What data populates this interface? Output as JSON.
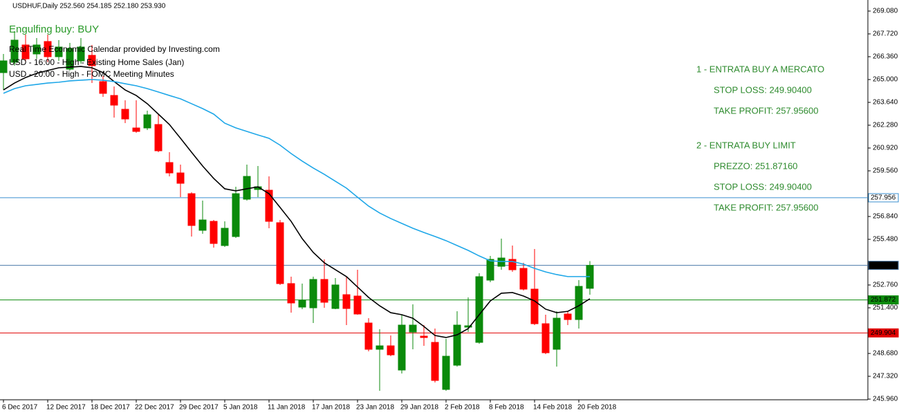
{
  "chart_data": {
    "type": "candlestick",
    "header": "USDHUF,Daily  252.560 254.185 252.180 253.930",
    "signal": "Engulfing buy: BUY",
    "calendar": [
      "Real Time Economic Calendar provided by Investing.com",
      "USD - 16:00 - High - Existing Home Sales (Jan)",
      "USD - 20:00 - High - FOMC Meeting Minutes"
    ],
    "plan": [
      "1 - ENTRATA BUY A MERCATO",
      "STOP LOSS: 249.90400",
      "TAKE PROFIT: 257.95600",
      "2 - ENTRATA BUY LIMIT",
      "PREZZO: 251.87160",
      "STOP LOSS: 249.90400",
      "TAKE PROFIT: 257.95600"
    ],
    "categories": [
      "6 Dec 2017",
      null,
      null,
      null,
      "12 Dec 2017",
      null,
      null,
      null,
      "18 Dec 2017",
      null,
      null,
      null,
      "22 Dec 2017",
      null,
      null,
      null,
      "29 Dec 2017",
      null,
      null,
      null,
      "5 Jan 2018",
      null,
      null,
      null,
      "11 Jan 2018",
      null,
      null,
      null,
      "17 Jan 2018",
      null,
      null,
      null,
      "23 Jan 2018",
      null,
      null,
      null,
      "29 Jan 2018",
      null,
      null,
      null,
      "2 Feb 2018",
      null,
      null,
      null,
      "8 Feb 2018",
      null,
      null,
      null,
      "14 Feb 2018",
      null,
      null,
      null,
      "20 Feb 2018",
      null
    ],
    "open": [
      265.412,
      266.03,
      267.06,
      266.525,
      267.266,
      266.36,
      265.618,
      266.113,
      266.442,
      264.876,
      264.052,
      263.228,
      262.115,
      262.115,
      262.321,
      260.055,
      259.436,
      258.2,
      256.016,
      256.552,
      255.109,
      255.645,
      257.87,
      258.447,
      258.406,
      256.47,
      252.843,
      251.442,
      251.4,
      253.09,
      251.359,
      252.183,
      252.101,
      250.494,
      248.928,
      249.134,
      247.692,
      249.958,
      249.711,
      249.34,
      246.537,
      247.98,
      250.247,
      249.34,
      253.049,
      253.873,
      254.285,
      253.749,
      252.513,
      250.452,
      248.928,
      251.03,
      250.7,
      252.56
    ],
    "high": [
      266.525,
      267.885,
      267.679,
      267.472,
      267.679,
      267.349,
      267.184,
      267.472,
      267.06,
      265.206,
      264.588,
      263.764,
      263.764,
      263.145,
      262.939,
      260.673,
      259.931,
      258.283,
      257.788,
      256.634,
      256.552,
      258.612,
      259.931,
      259.849,
      259.23,
      256.634,
      253.255,
      252.843,
      253.255,
      254.285,
      253.173,
      253.255,
      253.667,
      250.782,
      250.123,
      249.752,
      250.988,
      251.607,
      250.37,
      250.164,
      249.546,
      251.195,
      252.019,
      253.461,
      254.491,
      255.522,
      255.109,
      254.079,
      254.903,
      250.988,
      251.195,
      251.195,
      253.049,
      254.185
    ],
    "low": [
      264.382,
      265.824,
      266.03,
      266.236,
      266.03,
      266.113,
      265.536,
      265.948,
      264.794,
      263.969,
      262.733,
      262.404,
      261.827,
      261.991,
      260.673,
      259.23,
      257.994,
      255.645,
      255.81,
      254.986,
      255.027,
      255.563,
      257.788,
      257.994,
      256.14,
      252.761,
      251.112,
      251.318,
      250.494,
      251.4,
      251.318,
      250.37,
      250.988,
      248.804,
      246.456,
      248.515,
      247.486,
      248.928,
      249.134,
      246.95,
      246.456,
      247.898,
      249.958,
      249.258,
      252.925,
      253.667,
      253.544,
      252.431,
      250.37,
      248.639,
      247.898,
      250.37,
      250.164,
      252.18
    ],
    "close": [
      266.113,
      267.349,
      266.236,
      267.06,
      266.36,
      266.937,
      266.854,
      266.937,
      265.824,
      264.176,
      263.475,
      262.651,
      261.909,
      262.898,
      260.755,
      259.436,
      258.818,
      256.305,
      256.634,
      255.233,
      256.14,
      258.2,
      259.23,
      258.612,
      256.552,
      252.843,
      251.689,
      251.854,
      253.09,
      251.73,
      252.761,
      251.359,
      251.03,
      248.928,
      249.134,
      248.598,
      250.37,
      250.37,
      249.629,
      247.073,
      248.515,
      250.37,
      250.329,
      253.255,
      254.285,
      254.367,
      253.667,
      252.513,
      250.452,
      248.722,
      250.782,
      250.7,
      252.678,
      253.93
    ],
    "up_color": "#0b8a0b",
    "down_color": "#ff0000",
    "lines": [
      {
        "color": "#000000",
        "values": [
          264.38,
          264.79,
          265.12,
          265.37,
          265.54,
          265.7,
          265.74,
          265.78,
          265.7,
          265.41,
          264.88,
          264.38,
          264.05,
          263.56,
          262.94,
          262.32,
          261.5,
          260.67,
          259.85,
          259.11,
          258.49,
          258.37,
          258.49,
          258.61,
          258.2,
          257.38,
          256.55,
          255.52,
          254.7,
          254.08,
          253.67,
          253.26,
          252.64,
          252.02,
          251.52,
          251.11,
          250.99,
          250.78,
          250.29,
          249.75,
          249.63,
          249.79,
          250.16,
          250.99,
          251.81,
          252.27,
          252.31,
          252.1,
          251.81,
          251.32,
          251.11,
          251.19,
          251.52,
          251.94
        ]
      },
      {
        "color": "#1ea7e8",
        "values": [
          264.18,
          264.46,
          264.63,
          264.71,
          264.79,
          264.84,
          264.92,
          264.96,
          265.0,
          264.96,
          264.88,
          264.75,
          264.63,
          264.46,
          264.26,
          264.05,
          263.85,
          263.56,
          263.27,
          262.94,
          262.4,
          262.12,
          261.91,
          261.7,
          261.5,
          261.09,
          260.59,
          260.14,
          259.73,
          259.35,
          258.94,
          258.53,
          257.99,
          257.46,
          257.05,
          256.72,
          256.43,
          256.14,
          255.89,
          255.65,
          255.4,
          255.11,
          254.82,
          254.49,
          254.2,
          254.16,
          254.16,
          254.0,
          253.75,
          253.54,
          253.38,
          253.26,
          253.26,
          253.26
        ]
      }
    ],
    "levels": [
      {
        "value": 257.956,
        "color": "#3a8fd0",
        "label_bg": "#ffffff",
        "label_color": "#1e6fc0"
      },
      {
        "value": 253.93,
        "label": "253.930",
        "color": "#4a78a8",
        "label_bg": "#000000",
        "label_color": "#ffffff"
      },
      {
        "value": 251.872,
        "color": "#0b8a0b",
        "label_bg": "#0b8a0b",
        "label_color": "#ffffff"
      },
      {
        "value": 249.904,
        "color": "#e00000",
        "label_bg": "#e00000",
        "label_color": "#ffffff"
      }
    ],
    "ylim": [
      245.92,
      269.739
    ],
    "yticks": [
      {
        "value": 269.08,
        "label": "269.080"
      },
      {
        "value": 267.72,
        "label": "267.720"
      },
      {
        "value": 266.36,
        "label": "266.360"
      },
      {
        "value": 265,
        "label": "265.000"
      },
      {
        "value": 263.64,
        "label": "263.640"
      },
      {
        "value": 262.28,
        "label": "262.280"
      },
      {
        "value": 260.92,
        "label": "260.920"
      },
      {
        "value": 259.56,
        "label": "259.560"
      },
      {
        "value": 256.84,
        "label": "256.840"
      },
      {
        "value": 255.48,
        "label": "255.480"
      },
      {
        "value": 252.76,
        "label": "252.760"
      },
      {
        "value": 251.4,
        "label": "251.400"
      },
      {
        "value": 248.68,
        "label": "248.680"
      },
      {
        "value": 247.32,
        "label": "247.320"
      },
      {
        "value": 245.96,
        "label": "245.960"
      }
    ]
  }
}
